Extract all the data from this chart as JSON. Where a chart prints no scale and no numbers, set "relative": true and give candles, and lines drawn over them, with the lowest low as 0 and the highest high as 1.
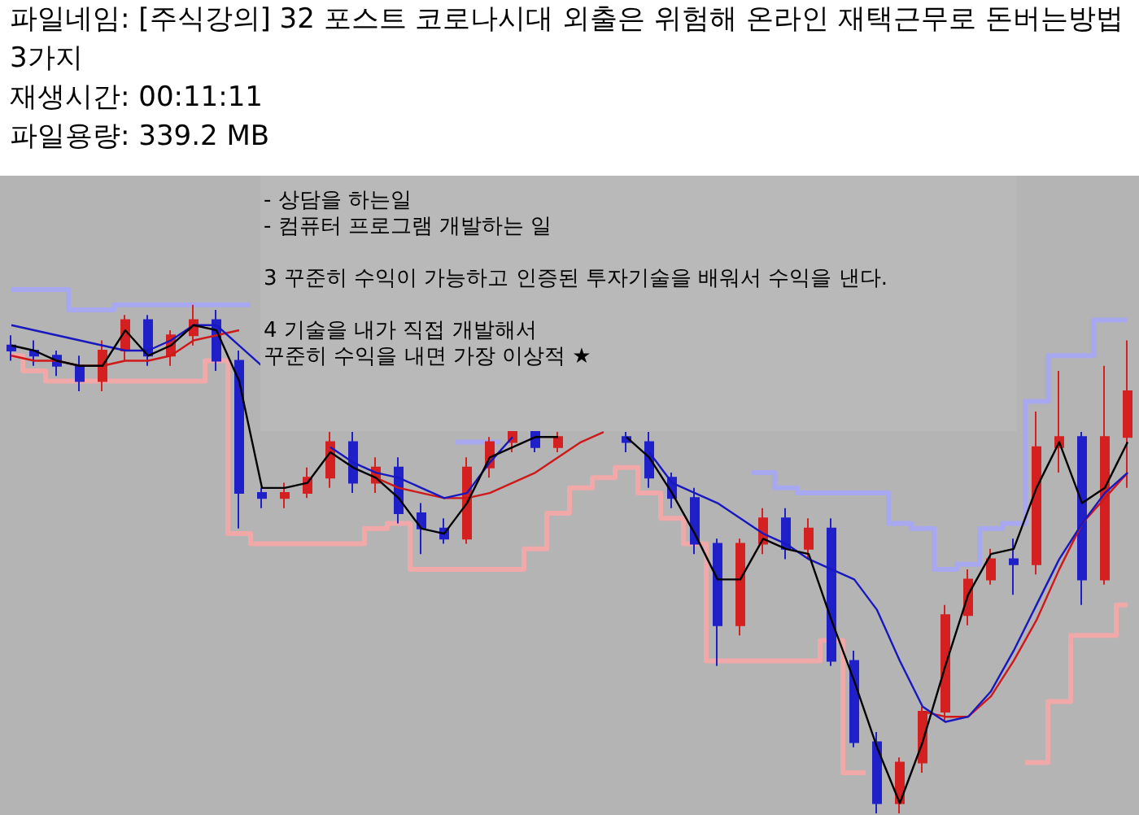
{
  "chart_data": {
    "type": "candlestick",
    "title": "파일네임: [주식강의] 32 포스트 코로나시대 외출은 위험해 온라인 재택근무로 돈버는방법 3가지",
    "annotations": [
      "재생시간: 00:11:11",
      "파일용량: 339.2 MB",
      "- 상담을 하는일",
      "- 컴퓨터 프로그램 개발하는 일",
      "3 꾸준히 수익이 가능하고 인증된 투자기술을 배워서 수익을 낸다.",
      "4 기술을 내가 직접 개발해서",
      "꾸준히 수익을 내면 가장 이상적 ★"
    ],
    "relative": true,
    "tick_labels": false,
    "grid": false,
    "marker": "none",
    "categories": [
      null,
      null,
      null,
      null,
      null,
      null,
      null,
      null,
      null,
      null,
      null,
      null,
      null,
      null,
      null,
      null,
      null,
      null,
      null,
      null,
      null,
      null,
      null,
      null,
      null,
      null,
      null,
      null,
      null,
      null,
      null,
      null,
      null,
      null,
      null,
      null,
      null,
      null,
      null,
      null,
      null,
      null,
      null,
      null,
      null,
      null,
      null,
      null,
      null,
      null
    ],
    "ohlc": [
      [
        0.92,
        0.94,
        0.89,
        0.91
      ],
      [
        0.91,
        0.93,
        0.88,
        0.9
      ],
      [
        0.9,
        0.91,
        0.86,
        0.88
      ],
      [
        0.88,
        0.9,
        0.83,
        0.85
      ],
      [
        0.85,
        0.93,
        0.83,
        0.91
      ],
      [
        0.91,
        0.98,
        0.89,
        0.97
      ],
      [
        0.97,
        0.98,
        0.88,
        0.9
      ],
      [
        0.9,
        0.95,
        0.88,
        0.94
      ],
      [
        0.94,
        1.0,
        0.92,
        0.97
      ],
      [
        0.97,
        0.99,
        0.87,
        0.89
      ],
      [
        0.89,
        0.91,
        0.56,
        0.63
      ],
      [
        0.63,
        0.64,
        0.6,
        0.62
      ],
      [
        0.62,
        0.65,
        0.6,
        0.63
      ],
      [
        0.63,
        0.68,
        0.62,
        0.66
      ],
      [
        0.66,
        0.75,
        0.64,
        0.73
      ],
      [
        0.73,
        0.75,
        0.63,
        0.65
      ],
      [
        0.65,
        0.7,
        0.63,
        0.68
      ],
      [
        0.68,
        0.7,
        0.57,
        0.59
      ],
      [
        0.59,
        0.61,
        0.51,
        0.56
      ],
      [
        0.56,
        0.58,
        0.53,
        0.54
      ],
      [
        0.54,
        0.7,
        0.53,
        0.68
      ],
      [
        0.68,
        0.74,
        0.66,
        0.73
      ],
      [
        0.73,
        0.75,
        0.71,
        0.75
      ],
      [
        0.75,
        0.75,
        0.71,
        0.72
      ],
      [
        0.72,
        0.75,
        0.71,
        0.74
      ],
      null,
      null,
      [
        0.74,
        0.75,
        0.71,
        0.73
      ],
      [
        0.73,
        0.75,
        0.64,
        0.66
      ],
      [
        0.66,
        0.67,
        0.6,
        0.62
      ],
      [
        0.62,
        0.64,
        0.51,
        0.53
      ],
      [
        0.53,
        0.54,
        0.29,
        0.37
      ],
      [
        0.37,
        0.54,
        0.35,
        0.53
      ],
      [
        0.53,
        0.6,
        0.51,
        0.58
      ],
      [
        0.58,
        0.6,
        0.5,
        0.52
      ],
      [
        0.52,
        0.58,
        0.5,
        0.56
      ],
      [
        0.56,
        0.58,
        0.29,
        0.3
      ],
      [
        0.3,
        0.32,
        0.13,
        0.14
      ],
      [
        0.14,
        0.16,
        0,
        0.02
      ],
      [
        0.02,
        0.11,
        0,
        0.1
      ],
      [
        0.1,
        0.21,
        0.08,
        0.2
      ],
      [
        0.2,
        0.41,
        0.18,
        0.39
      ],
      [
        0.39,
        0.48,
        0.37,
        0.46
      ],
      [
        0.46,
        0.52,
        0.45,
        0.5
      ],
      [
        0.5,
        0.54,
        0.43,
        0.49
      ],
      [
        0.49,
        0.79,
        0.47,
        0.72
      ],
      [
        0.72,
        0.87,
        0.67,
        0.74
      ],
      [
        0.74,
        0.75,
        0.41,
        0.46
      ],
      [
        0.46,
        0.88,
        0.45,
        0.74
      ],
      [
        0.74,
        0.93,
        0.64,
        0.83
      ]
    ],
    "colors": [
      "#2020c8",
      "#2020c8",
      "#2020c8",
      "#2020c8",
      "#d42020",
      "#d42020",
      "#2020c8",
      "#d42020",
      "#d42020",
      "#2020c8",
      "#2020c8",
      "#2020c8",
      "#d42020",
      "#d42020",
      "#d42020",
      "#2020c8",
      "#d42020",
      "#2020c8",
      "#2020c8",
      "#2020c8",
      "#d42020",
      "#d42020",
      "#d42020",
      "#2020c8",
      "#d42020",
      null,
      null,
      "#2020c8",
      "#2020c8",
      "#2020c8",
      "#2020c8",
      "#2020c8",
      "#d42020",
      "#d42020",
      "#2020c8",
      "#d42020",
      "#2020c8",
      "#2020c8",
      "#2020c8",
      "#d42020",
      "#d42020",
      "#d42020",
      "#d42020",
      "#d42020",
      "#2020c8",
      "#d42020",
      "#d42020",
      "#2020c8",
      "#d42020",
      "#d42020"
    ],
    "series": [
      {
        "type": "step",
        "color": "#a8a8f0",
        "values": [
          1.03,
          1.03,
          1.03,
          0.99,
          0.99,
          1.0,
          1.0,
          1.0,
          1.0,
          1.0,
          1.0,
          null,
          null,
          null,
          null,
          null,
          null,
          null,
          null,
          null,
          0.73,
          0.73,
          null,
          null,
          null,
          null,
          null,
          null,
          null,
          null,
          null,
          null,
          null,
          0.67,
          0.64,
          0.63,
          0.63,
          0.63,
          0.63,
          0.57,
          0.56,
          0.48,
          0.49,
          0.56,
          0.57,
          0.81,
          0.9,
          0.9,
          0.97,
          0.97
        ]
      },
      {
        "type": "step",
        "color": "#f0a8a8",
        "values": [
          0.9,
          0.87,
          0.85,
          0.85,
          0.85,
          0.85,
          0.85,
          0.85,
          0.85,
          0.89,
          0.55,
          0.53,
          0.53,
          0.53,
          0.53,
          0.53,
          0.56,
          0.57,
          0.48,
          0.48,
          0.48,
          0.48,
          0.48,
          0.52,
          0.59,
          0.64,
          0.66,
          0.68,
          0.63,
          0.58,
          0.53,
          0.3,
          0.3,
          0.3,
          0.3,
          0.3,
          0.34,
          0.08,
          null,
          null,
          null,
          null,
          null,
          null,
          null,
          0.1,
          0.22,
          0.35,
          0.35,
          0.41
        ]
      },
      {
        "type": "line",
        "color": "#d01818",
        "values": [
          0.9,
          0.89,
          0.89,
          0.88,
          0.88,
          0.89,
          0.89,
          0.9,
          0.93,
          0.94,
          0.95,
          null,
          null,
          null,
          null,
          null,
          0.66,
          0.64,
          0.63,
          0.62,
          0.62,
          0.63,
          0.65,
          0.67,
          0.7,
          0.73,
          0.75,
          null,
          null,
          null,
          null,
          null,
          null,
          null,
          null,
          null,
          null,
          null,
          null,
          null,
          0.2,
          0.19,
          0.19,
          0.23,
          0.3,
          0.38,
          0.48,
          0.57,
          0.62,
          0.67
        ]
      },
      {
        "type": "line",
        "color": "#1818c0",
        "values": [
          0.96,
          0.95,
          0.94,
          0.93,
          0.92,
          0.91,
          0.91,
          0.93,
          0.96,
          0.96,
          0.92,
          0.88,
          null,
          null,
          0.72,
          0.69,
          0.67,
          0.66,
          0.64,
          0.62,
          0.63,
          0.69,
          0.74,
          null,
          null,
          null,
          null,
          null,
          0.71,
          0.65,
          0.63,
          0.61,
          0.58,
          0.55,
          0.53,
          0.5,
          0.48,
          0.46,
          0.4,
          0.3,
          0.21,
          0.18,
          0.19,
          0.24,
          0.32,
          0.41,
          0.5,
          0.57,
          0.63,
          0.67
        ]
      },
      {
        "type": "line",
        "color": "#000000",
        "values": [
          0.92,
          0.91,
          0.89,
          0.88,
          0.88,
          0.95,
          0.9,
          0.92,
          0.96,
          0.95,
          0.85,
          0.64,
          0.64,
          0.65,
          0.71,
          0.68,
          0.66,
          0.62,
          0.56,
          0.55,
          0.61,
          0.7,
          0.72,
          0.74,
          0.74,
          null,
          null,
          0.74,
          0.7,
          0.63,
          0.55,
          0.46,
          0.46,
          0.54,
          0.52,
          0.51,
          0.38,
          0.26,
          0.13,
          0.02,
          0.14,
          0.29,
          0.43,
          0.51,
          0.52,
          0.64,
          0.73,
          0.61,
          0.64,
          0.73
        ]
      }
    ]
  }
}
